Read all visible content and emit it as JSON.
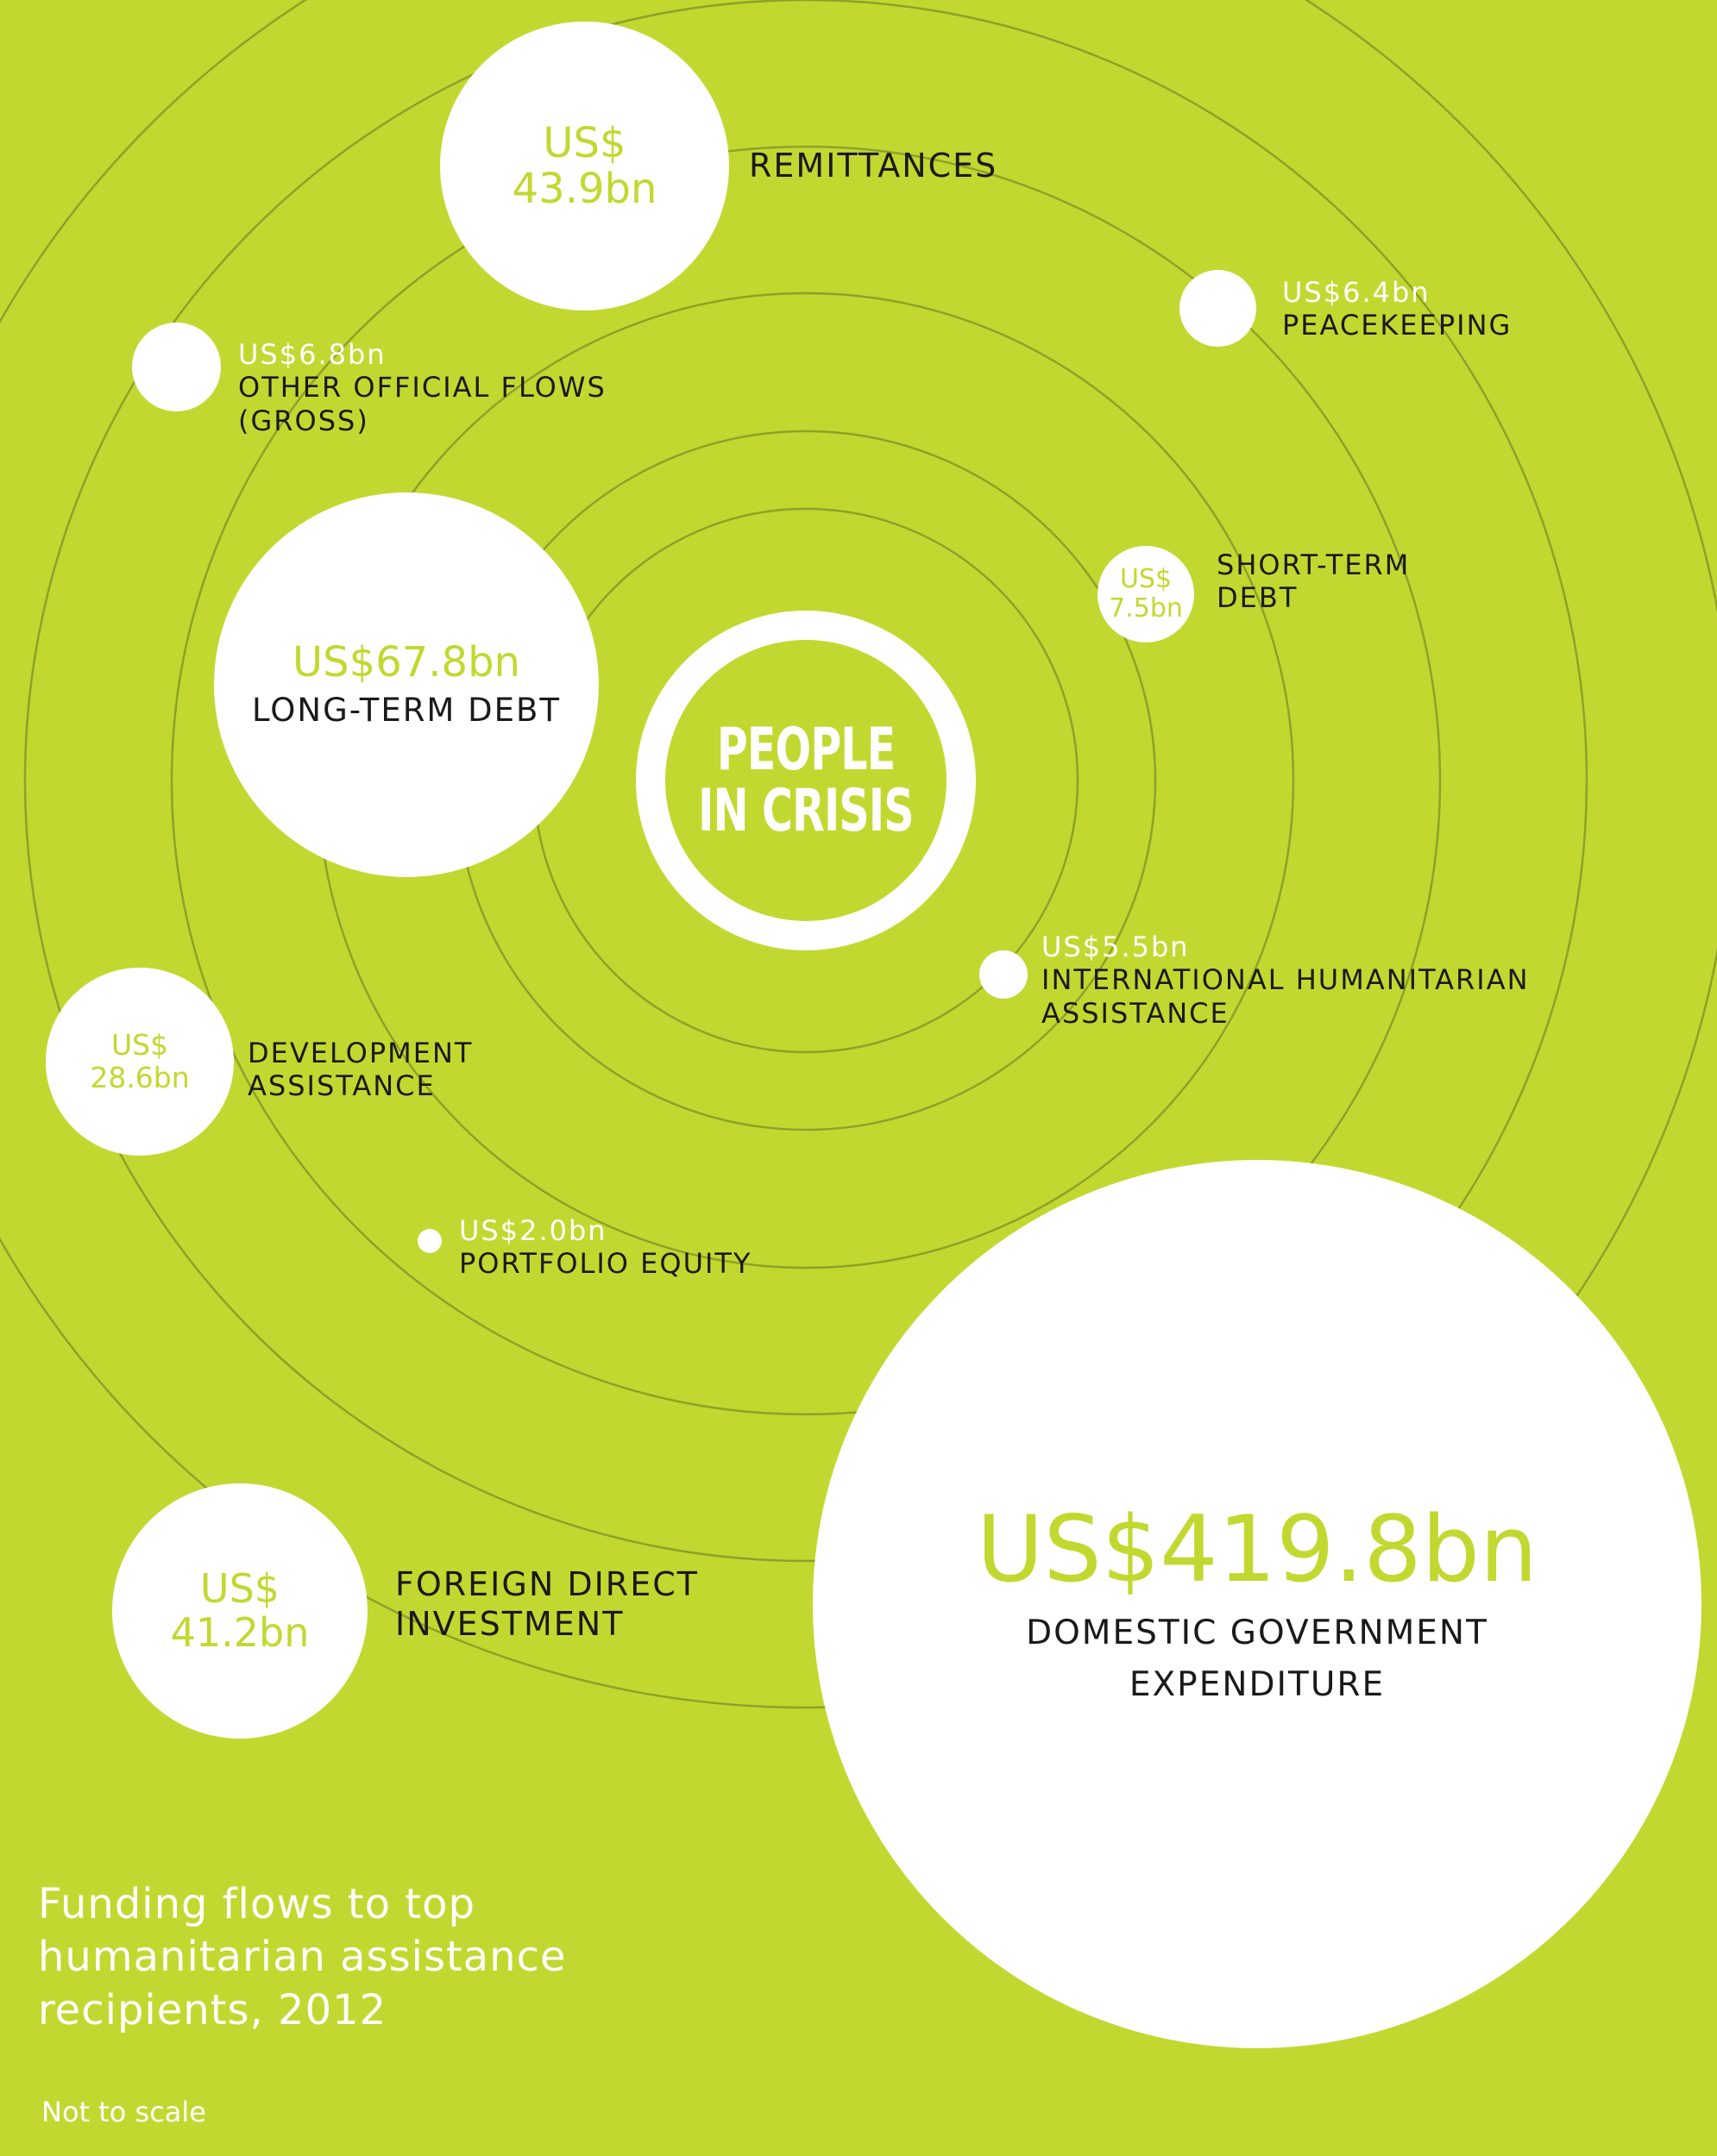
{
  "center": {
    "line1": "PEOPLE",
    "line2": "IN CRISIS"
  },
  "flows": {
    "remittances": {
      "amount_line1": "US$",
      "amount_line2": "43.9bn",
      "label": "REMITTANCES"
    },
    "peacekeeping": {
      "amount": "US$6.4bn",
      "label": "PEACEKEEPING"
    },
    "other_official_flows": {
      "amount": "US$6.8bn",
      "label_line1": "OTHER OFFICIAL FLOWS",
      "label_line2": "(GROSS)"
    },
    "short_term_debt": {
      "amount_line1": "US$",
      "amount_line2": "7.5bn",
      "label_line1": "SHORT-TERM",
      "label_line2": "DEBT"
    },
    "long_term_debt": {
      "amount": "US$67.8bn",
      "label": "LONG-TERM DEBT"
    },
    "international_humanitarian_assistance": {
      "amount": "US$5.5bn",
      "label_line1": "INTERNATIONAL HUMANITARIAN",
      "label_line2": "ASSISTANCE"
    },
    "development_assistance": {
      "amount_line1": "US$",
      "amount_line2": "28.6bn",
      "label_line1": "DEVELOPMENT",
      "label_line2": "ASSISTANCE"
    },
    "portfolio_equity": {
      "amount": "US$2.0bn",
      "label": "PORTFOLIO EQUITY"
    },
    "foreign_direct_investment": {
      "amount_line1": "US$",
      "amount_line2": "41.2bn",
      "label_line1": "FOREIGN DIRECT",
      "label_line2": "INVESTMENT"
    },
    "domestic_government_expenditure": {
      "amount": "US$419.8bn",
      "label_line1": "DOMESTIC GOVERNMENT",
      "label_line2": "EXPENDITURE"
    }
  },
  "title": {
    "line1": "Funding flows to top",
    "line2": "humanitarian assistance",
    "line3": "recipients, 2012"
  },
  "note": "Not to scale",
  "colors": {
    "background": "#c2d830",
    "bubble": "#ffffff",
    "orbit": "#8fa128",
    "text_dark": "#1a1a1a"
  }
}
